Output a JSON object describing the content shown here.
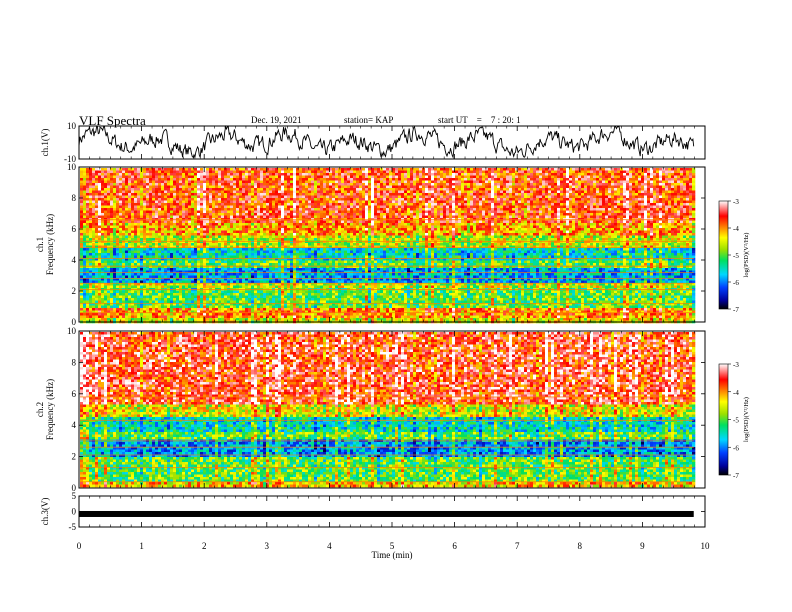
{
  "header": {
    "title": "VLF Spectra",
    "date": "Dec. 19, 2021",
    "station": "station= KAP",
    "start_label": "start  UT",
    "start_eq": "=",
    "start_time": "7 : 20: 1"
  },
  "chart_data": [
    {
      "type": "line",
      "panel": "ch1-waveform",
      "ylabel": "ch.1(V)",
      "ylim": [
        -10,
        10
      ],
      "yticks": [
        "10",
        "-10"
      ],
      "xlim": [
        0,
        10
      ],
      "x_end": 9.82,
      "series": [
        {
          "values_summary": "noisy waveform oscillating roughly between -9 and 9 V"
        }
      ]
    },
    {
      "type": "heatmap",
      "panel": "ch1-spectrogram",
      "ylabel": "ch.1\nFrequency (kHz)",
      "ylim": [
        0,
        10
      ],
      "yticks": [
        "0",
        "2",
        "4",
        "6",
        "8",
        "10"
      ],
      "xlim": [
        0,
        10
      ],
      "x_end": 9.82,
      "colorbar": {
        "label": "log(PSD)(V²/Hz)",
        "range": [
          -7,
          -3
        ],
        "ticks": [
          "-3",
          "-4",
          "-5",
          "-6",
          "-7"
        ]
      },
      "bands": [
        {
          "from": 0.0,
          "to": 0.3,
          "level": -4.5
        },
        {
          "from": 0.3,
          "to": 1.0,
          "level": -4.0
        },
        {
          "from": 1.0,
          "to": 2.2,
          "level": -5.0
        },
        {
          "from": 2.2,
          "to": 2.6,
          "level": -4.6
        },
        {
          "from": 2.6,
          "to": 3.6,
          "level": -5.8
        },
        {
          "from": 3.6,
          "to": 4.0,
          "level": -5.0
        },
        {
          "from": 4.0,
          "to": 4.8,
          "level": -5.5
        },
        {
          "from": 4.8,
          "to": 5.6,
          "level": -4.6
        },
        {
          "from": 5.6,
          "to": 6.4,
          "level": -4.1
        },
        {
          "from": 6.4,
          "to": 10.0,
          "level": -3.7
        }
      ],
      "lines_khz": [
        0.6,
        1.2,
        2.1,
        2.5,
        2.8,
        3.2,
        3.6,
        4.1,
        4.8,
        5.2,
        6.6
      ]
    },
    {
      "type": "heatmap",
      "panel": "ch2-spectrogram",
      "ylabel": "ch.2\nFrequency (kHz)",
      "ylim": [
        0,
        10
      ],
      "yticks": [
        "0",
        "2",
        "4",
        "6",
        "8",
        "10"
      ],
      "xlim": [
        0,
        10
      ],
      "x_end": 9.82,
      "colorbar": {
        "label": "log(PSD)(V²/Hz)",
        "range": [
          -7,
          -3
        ],
        "ticks": [
          "-3",
          "-4",
          "-5",
          "-6",
          "-7"
        ]
      },
      "bands": [
        {
          "from": 0.0,
          "to": 0.5,
          "level": -4.3
        },
        {
          "from": 0.5,
          "to": 2.0,
          "level": -5.0
        },
        {
          "from": 2.0,
          "to": 3.2,
          "level": -5.9
        },
        {
          "from": 3.2,
          "to": 3.6,
          "level": -5.0
        },
        {
          "from": 3.6,
          "to": 4.6,
          "level": -5.5
        },
        {
          "from": 4.6,
          "to": 5.4,
          "level": -4.5
        },
        {
          "from": 5.4,
          "to": 10.0,
          "level": -3.6
        }
      ],
      "lines_khz": [
        0.4,
        1.3,
        2.1,
        2.6,
        3.0,
        4.3,
        5.8
      ]
    },
    {
      "type": "line",
      "panel": "ch3-waveform",
      "ylabel": "ch.3(V)",
      "ylim": [
        -5,
        5
      ],
      "yticks": [
        "5",
        "0",
        "-5"
      ],
      "xlim": [
        0,
        10
      ],
      "x_end": 9.82,
      "series": [
        {
          "values_summary": "flat thick signal near 0 V"
        }
      ]
    },
    {
      "type": "axis",
      "xlabel": "Time (min)",
      "xticks": [
        "0",
        "1",
        "2",
        "3",
        "4",
        "5",
        "6",
        "7",
        "8",
        "9",
        "10"
      ]
    }
  ]
}
